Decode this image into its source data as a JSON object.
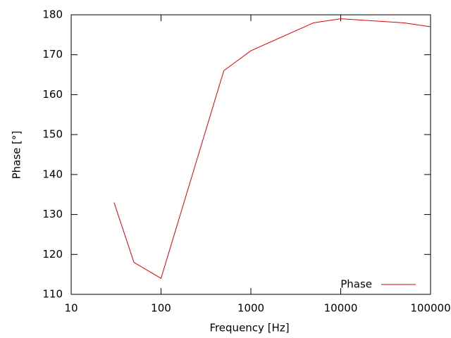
{
  "chart_data": {
    "type": "line",
    "x_label": "Frequency [Hz]",
    "y_label": "Phase [°]",
    "x": [
      30,
      50,
      100,
      500,
      1000,
      5000,
      10000,
      50000,
      100000
    ],
    "series": [
      {
        "name": "Phase",
        "color": "#e00000",
        "values": [
          133,
          118,
          114,
          166,
          171,
          178,
          179,
          178,
          177
        ]
      }
    ],
    "xlim": [
      10,
      100000
    ],
    "xticks": [
      10,
      100,
      1000,
      10000,
      100000
    ],
    "xscale": "log",
    "ylim": [
      110,
      180
    ],
    "yticks": [
      110,
      120,
      130,
      140,
      150,
      160,
      170,
      180
    ],
    "grid": false,
    "legend": "lower right"
  }
}
